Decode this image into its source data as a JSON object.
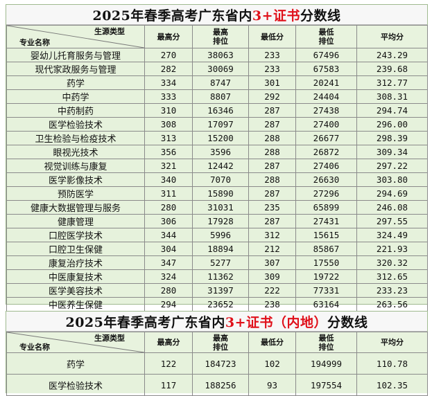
{
  "table1": {
    "title_pre": "2025年春季高考广东省内",
    "title_hl": "3+证书",
    "title_post": "分数线",
    "header": {
      "corner_top": "生源类型",
      "corner_bottom": "专业名称",
      "max_score": "最高分",
      "max_rank_1": "最高",
      "max_rank_2": "排位",
      "min_score": "最低分",
      "min_rank_1": "最低",
      "min_rank_2": "排位",
      "avg": "平均分"
    },
    "rows": [
      {
        "name": "婴幼儿托育服务与管理",
        "max": "270",
        "max_rank": "38063",
        "min": "233",
        "min_rank": "67496",
        "avg": "243.29"
      },
      {
        "name": "现代家政服务与管理",
        "max": "282",
        "max_rank": "30069",
        "min": "233",
        "min_rank": "67583",
        "avg": "239.68"
      },
      {
        "name": "药学",
        "max": "334",
        "max_rank": "8747",
        "min": "301",
        "min_rank": "20241",
        "avg": "312.77"
      },
      {
        "name": "中药学",
        "max": "333",
        "max_rank": "8807",
        "min": "292",
        "min_rank": "24404",
        "avg": "308.31"
      },
      {
        "name": "中药制药",
        "max": "310",
        "max_rank": "16346",
        "min": "287",
        "min_rank": "27438",
        "avg": "294.74"
      },
      {
        "name": "医学检验技术",
        "max": "308",
        "max_rank": "17097",
        "min": "287",
        "min_rank": "27400",
        "avg": "296.00"
      },
      {
        "name": "卫生检验与检疫技术",
        "max": "313",
        "max_rank": "15200",
        "min": "288",
        "min_rank": "26677",
        "avg": "298.39"
      },
      {
        "name": "眼视光技术",
        "max": "356",
        "max_rank": "3596",
        "min": "288",
        "min_rank": "26872",
        "avg": "309.34"
      },
      {
        "name": "视觉训练与康复",
        "max": "321",
        "max_rank": "12442",
        "min": "287",
        "min_rank": "27406",
        "avg": "297.22"
      },
      {
        "name": "医学影像技术",
        "max": "340",
        "max_rank": "7070",
        "min": "288",
        "min_rank": "26630",
        "avg": "303.80"
      },
      {
        "name": "预防医学",
        "max": "311",
        "max_rank": "15890",
        "min": "287",
        "min_rank": "27296",
        "avg": "294.69"
      },
      {
        "name": "健康大数据管理与服务",
        "max": "280",
        "max_rank": "31031",
        "min": "235",
        "min_rank": "65899",
        "avg": "246.08"
      },
      {
        "name": "健康管理",
        "max": "306",
        "max_rank": "17928",
        "min": "287",
        "min_rank": "27431",
        "avg": "297.55"
      },
      {
        "name": "口腔医学技术",
        "max": "344",
        "max_rank": "5996",
        "min": "312",
        "min_rank": "15615",
        "avg": "324.49"
      },
      {
        "name": "口腔卫生保健",
        "max": "304",
        "max_rank": "18894",
        "min": "212",
        "min_rank": "85867",
        "avg": "221.93"
      },
      {
        "name": "康复治疗技术",
        "max": "347",
        "max_rank": "5277",
        "min": "307",
        "min_rank": "17550",
        "avg": "320.32"
      },
      {
        "name": "中医康复技术",
        "max": "324",
        "max_rank": "11362",
        "min": "309",
        "min_rank": "19722",
        "avg": "312.65"
      },
      {
        "name": "医学美容技术",
        "max": "280",
        "max_rank": "31397",
        "min": "222",
        "min_rank": "77331",
        "avg": "233.23"
      },
      {
        "name": "中医养生保健",
        "max": "294",
        "max_rank": "23652",
        "min": "238",
        "min_rank": "63164",
        "avg": "263.56"
      }
    ]
  },
  "table2": {
    "title_pre": "2025年春季高考广东省内",
    "title_hl": "3+证书（内地）",
    "title_post": "分数线",
    "header": {
      "corner_top": "生源类型",
      "corner_bottom": "专业名称",
      "max_score": "最高分",
      "max_rank_1": "最高",
      "max_rank_2": "排位",
      "min_score": "最低分",
      "min_rank_1": "最低",
      "min_rank_2": "排位",
      "avg": "平均分"
    },
    "rows": [
      {
        "name": "药学",
        "max": "122",
        "max_rank": "184723",
        "min": "102",
        "min_rank": "194999",
        "avg": "110.78"
      },
      {
        "name": "医学检验技术",
        "max": "117",
        "max_rank": "188256",
        "min": "93",
        "min_rank": "197554",
        "avg": "102.35"
      }
    ]
  }
}
